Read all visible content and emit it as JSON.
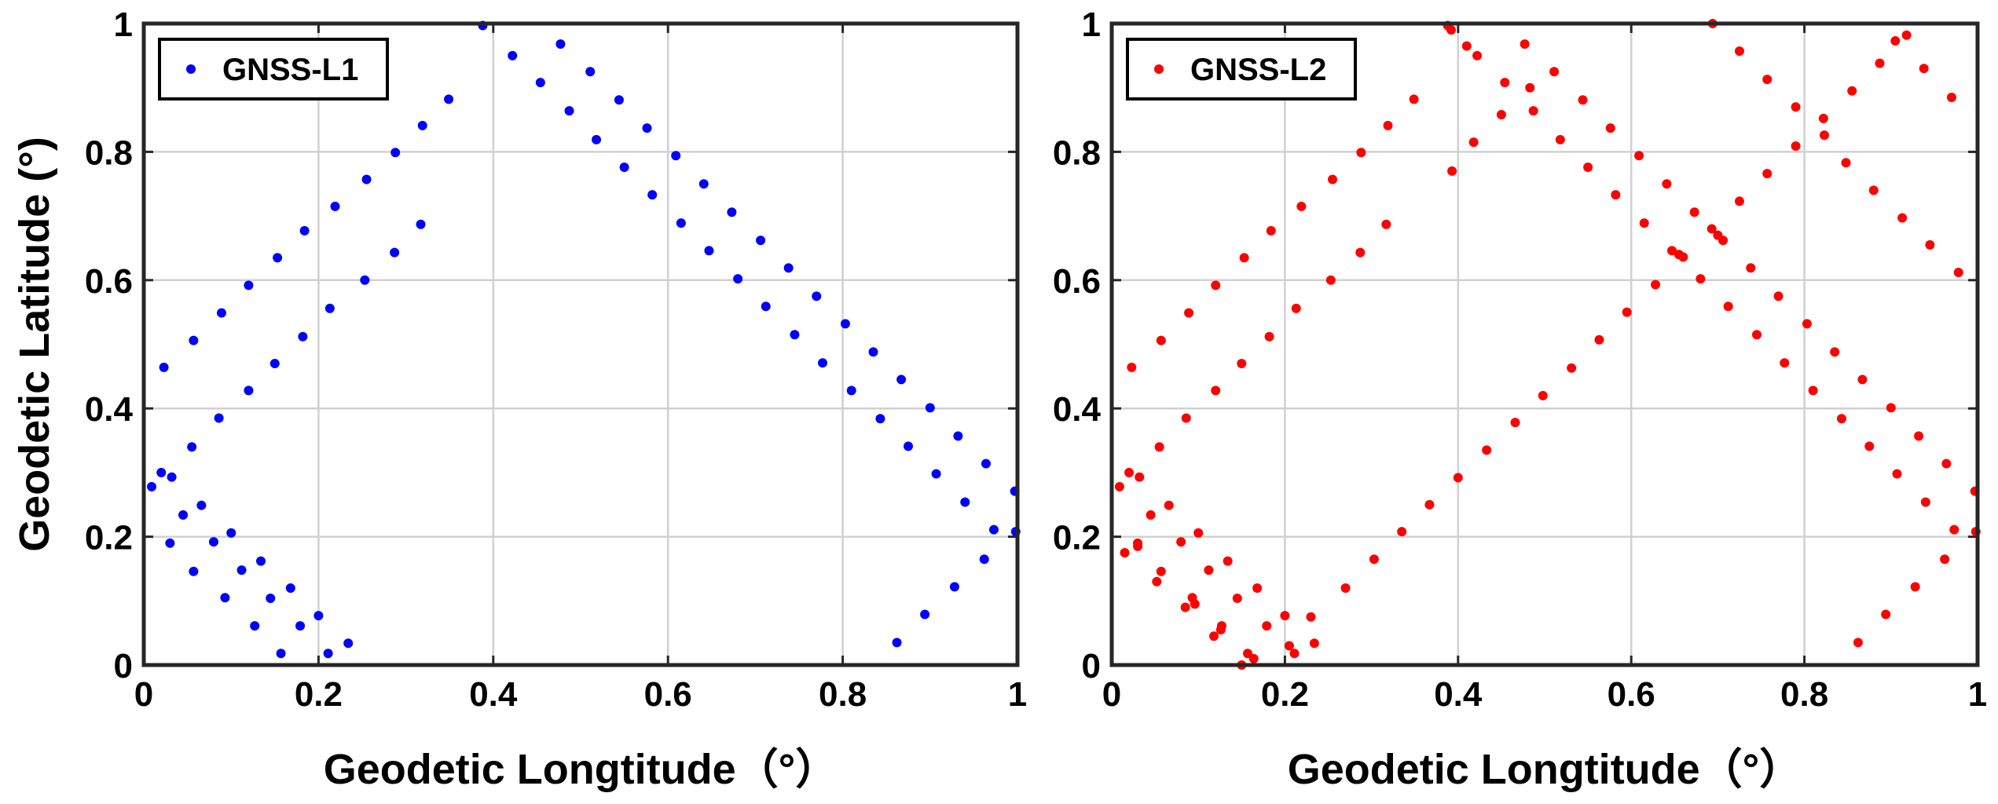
{
  "chart_data": [
    {
      "type": "scatter",
      "xlabel": "Geodetic Longtitude（°）",
      "ylabel": "Geodetic Latitude (°)",
      "xlim": [
        0,
        1
      ],
      "ylim": [
        0,
        1
      ],
      "xticks": [
        "0",
        "0.2",
        "0.4",
        "0.6",
        "0.8",
        "1"
      ],
      "yticks": [
        "0",
        "0.2",
        "0.4",
        "0.6",
        "0.8",
        "1"
      ],
      "grid": true,
      "legend_position": "top-left",
      "series": [
        {
          "name": "GNSS-L1",
          "color": "#0000ff",
          "points": [
            [
              0.009,
              0.278
            ],
            [
              0.02,
              0.3
            ],
            [
              0.032,
              0.293
            ],
            [
              0.03,
              0.19
            ],
            [
              0.045,
              0.234
            ],
            [
              0.057,
              0.146
            ],
            [
              0.066,
              0.249
            ],
            [
              0.08,
              0.192
            ],
            [
              0.093,
              0.105
            ],
            [
              0.1,
              0.206
            ],
            [
              0.112,
              0.148
            ],
            [
              0.127,
              0.061
            ],
            [
              0.134,
              0.162
            ],
            [
              0.145,
              0.104
            ],
            [
              0.157,
              0.018
            ],
            [
              0.168,
              0.12
            ],
            [
              0.179,
              0.061
            ],
            [
              0.2,
              0.077
            ],
            [
              0.211,
              0.018
            ],
            [
              0.234,
              0.034
            ],
            [
              0.023,
              0.464
            ],
            [
              0.055,
              0.34
            ],
            [
              0.057,
              0.506
            ],
            [
              0.086,
              0.385
            ],
            [
              0.089,
              0.549
            ],
            [
              0.12,
              0.428
            ],
            [
              0.12,
              0.592
            ],
            [
              0.15,
              0.47
            ],
            [
              0.153,
              0.635
            ],
            [
              0.182,
              0.512
            ],
            [
              0.184,
              0.677
            ],
            [
              0.213,
              0.556
            ],
            [
              0.219,
              0.715
            ],
            [
              0.253,
              0.6
            ],
            [
              0.255,
              0.757
            ],
            [
              0.287,
              0.643
            ],
            [
              0.288,
              0.799
            ],
            [
              0.317,
              0.687
            ],
            [
              0.319,
              0.841
            ],
            [
              0.349,
              0.882
            ],
            [
              0.388,
              0.997
            ],
            [
              0.422,
              0.95
            ],
            [
              0.454,
              0.908
            ],
            [
              0.477,
              0.968
            ],
            [
              0.487,
              0.864
            ],
            [
              0.511,
              0.925
            ],
            [
              0.518,
              0.819
            ],
            [
              0.544,
              0.881
            ],
            [
              0.55,
              0.776
            ],
            [
              0.576,
              0.837
            ],
            [
              0.582,
              0.733
            ],
            [
              0.609,
              0.794
            ],
            [
              0.615,
              0.689
            ],
            [
              0.641,
              0.75
            ],
            [
              0.647,
              0.646
            ],
            [
              0.673,
              0.706
            ],
            [
              0.68,
              0.602
            ],
            [
              0.706,
              0.662
            ],
            [
              0.712,
              0.559
            ],
            [
              0.738,
              0.619
            ],
            [
              0.745,
              0.515
            ],
            [
              0.77,
              0.575
            ],
            [
              0.777,
              0.471
            ],
            [
              0.803,
              0.532
            ],
            [
              0.81,
              0.428
            ],
            [
              0.835,
              0.488
            ],
            [
              0.843,
              0.384
            ],
            [
              0.867,
              0.445
            ],
            [
              0.875,
              0.341
            ],
            [
              0.9,
              0.401
            ],
            [
              0.907,
              0.298
            ],
            [
              0.932,
              0.357
            ],
            [
              0.94,
              0.254
            ],
            [
              0.964,
              0.314
            ],
            [
              0.973,
              0.211
            ],
            [
              0.997,
              0.271
            ],
            [
              0.998,
              0.208
            ],
            [
              0.862,
              0.035
            ],
            [
              0.894,
              0.079
            ],
            [
              0.928,
              0.122
            ],
            [
              0.962,
              0.165
            ]
          ]
        }
      ]
    },
    {
      "type": "scatter",
      "xlabel": "Geodetic Longtitude（°）",
      "ylabel": "",
      "xlim": [
        0,
        1
      ],
      "ylim": [
        0,
        1
      ],
      "xticks": [
        "0",
        "0.2",
        "0.4",
        "0.6",
        "0.8",
        "1"
      ],
      "yticks": [
        "0",
        "0.2",
        "0.4",
        "0.6",
        "0.8",
        "1"
      ],
      "grid": true,
      "legend_position": "top-left",
      "series": [
        {
          "name": "GNSS-L2",
          "color": "#ff0000",
          "points": [
            [
              0.009,
              0.278
            ],
            [
              0.02,
              0.3
            ],
            [
              0.032,
              0.293
            ],
            [
              0.03,
              0.19
            ],
            [
              0.045,
              0.234
            ],
            [
              0.057,
              0.146
            ],
            [
              0.066,
              0.249
            ],
            [
              0.08,
              0.192
            ],
            [
              0.093,
              0.105
            ],
            [
              0.1,
              0.206
            ],
            [
              0.112,
              0.148
            ],
            [
              0.127,
              0.061
            ],
            [
              0.134,
              0.162
            ],
            [
              0.145,
              0.104
            ],
            [
              0.157,
              0.018
            ],
            [
              0.168,
              0.12
            ],
            [
              0.179,
              0.061
            ],
            [
              0.2,
              0.077
            ],
            [
              0.211,
              0.018
            ],
            [
              0.234,
              0.034
            ],
            [
              0.023,
              0.464
            ],
            [
              0.055,
              0.34
            ],
            [
              0.057,
              0.506
            ],
            [
              0.086,
              0.385
            ],
            [
              0.089,
              0.549
            ],
            [
              0.12,
              0.428
            ],
            [
              0.12,
              0.592
            ],
            [
              0.15,
              0.47
            ],
            [
              0.153,
              0.635
            ],
            [
              0.182,
              0.512
            ],
            [
              0.184,
              0.677
            ],
            [
              0.213,
              0.556
            ],
            [
              0.219,
              0.715
            ],
            [
              0.253,
              0.6
            ],
            [
              0.255,
              0.757
            ],
            [
              0.287,
              0.643
            ],
            [
              0.288,
              0.799
            ],
            [
              0.317,
              0.687
            ],
            [
              0.319,
              0.841
            ],
            [
              0.349,
              0.882
            ],
            [
              0.388,
              0.997
            ],
            [
              0.422,
              0.95
            ],
            [
              0.454,
              0.908
            ],
            [
              0.477,
              0.968
            ],
            [
              0.487,
              0.864
            ],
            [
              0.511,
              0.925
            ],
            [
              0.518,
              0.819
            ],
            [
              0.544,
              0.881
            ],
            [
              0.55,
              0.776
            ],
            [
              0.576,
              0.837
            ],
            [
              0.582,
              0.733
            ],
            [
              0.609,
              0.794
            ],
            [
              0.615,
              0.689
            ],
            [
              0.641,
              0.75
            ],
            [
              0.647,
              0.646
            ],
            [
              0.673,
              0.706
            ],
            [
              0.68,
              0.602
            ],
            [
              0.706,
              0.662
            ],
            [
              0.712,
              0.559
            ],
            [
              0.738,
              0.619
            ],
            [
              0.745,
              0.515
            ],
            [
              0.77,
              0.575
            ],
            [
              0.777,
              0.471
            ],
            [
              0.803,
              0.532
            ],
            [
              0.81,
              0.428
            ],
            [
              0.835,
              0.488
            ],
            [
              0.843,
              0.384
            ],
            [
              0.867,
              0.445
            ],
            [
              0.875,
              0.341
            ],
            [
              0.9,
              0.401
            ],
            [
              0.907,
              0.298
            ],
            [
              0.932,
              0.357
            ],
            [
              0.94,
              0.254
            ],
            [
              0.964,
              0.314
            ],
            [
              0.973,
              0.211
            ],
            [
              0.997,
              0.271
            ],
            [
              0.998,
              0.208
            ],
            [
              0.862,
              0.035
            ],
            [
              0.894,
              0.079
            ],
            [
              0.928,
              0.122
            ],
            [
              0.962,
              0.165
            ],
            [
              0.015,
              0.175
            ],
            [
              0.03,
              0.185
            ],
            [
              0.052,
              0.13
            ],
            [
              0.085,
              0.09
            ],
            [
              0.096,
              0.095
            ],
            [
              0.118,
              0.045
            ],
            [
              0.126,
              0.055
            ],
            [
              0.15,
              0.0
            ],
            [
              0.164,
              0.01
            ],
            [
              0.205,
              0.03
            ],
            [
              0.23,
              0.075
            ],
            [
              0.27,
              0.12
            ],
            [
              0.303,
              0.165
            ],
            [
              0.335,
              0.208
            ],
            [
              0.367,
              0.25
            ],
            [
              0.4,
              0.292
            ],
            [
              0.433,
              0.335
            ],
            [
              0.466,
              0.378
            ],
            [
              0.498,
              0.42
            ],
            [
              0.531,
              0.463
            ],
            [
              0.563,
              0.507
            ],
            [
              0.595,
              0.55
            ],
            [
              0.628,
              0.593
            ],
            [
              0.66,
              0.636
            ],
            [
              0.693,
              0.68
            ],
            [
              0.725,
              0.723
            ],
            [
              0.757,
              0.766
            ],
            [
              0.79,
              0.809
            ],
            [
              0.822,
              0.852
            ],
            [
              0.855,
              0.895
            ],
            [
              0.887,
              0.938
            ],
            [
              0.918,
              0.982
            ],
            [
              0.393,
              0.77
            ],
            [
              0.418,
              0.815
            ],
            [
              0.45,
              0.858
            ],
            [
              0.483,
              0.9
            ],
            [
              0.392,
              0.99
            ],
            [
              0.41,
              0.965
            ],
            [
              0.694,
              1.0
            ],
            [
              0.725,
              0.957
            ],
            [
              0.757,
              0.913
            ],
            [
              0.79,
              0.87
            ],
            [
              0.823,
              0.826
            ],
            [
              0.848,
              0.783
            ],
            [
              0.88,
              0.74
            ],
            [
              0.913,
              0.697
            ],
            [
              0.945,
              0.655
            ],
            [
              0.978,
              0.612
            ],
            [
              0.97,
              0.885
            ],
            [
              0.938,
              0.93
            ],
            [
              0.905,
              0.973
            ],
            [
              0.655,
              0.64
            ],
            [
              0.7,
              0.67
            ]
          ]
        }
      ]
    }
  ]
}
